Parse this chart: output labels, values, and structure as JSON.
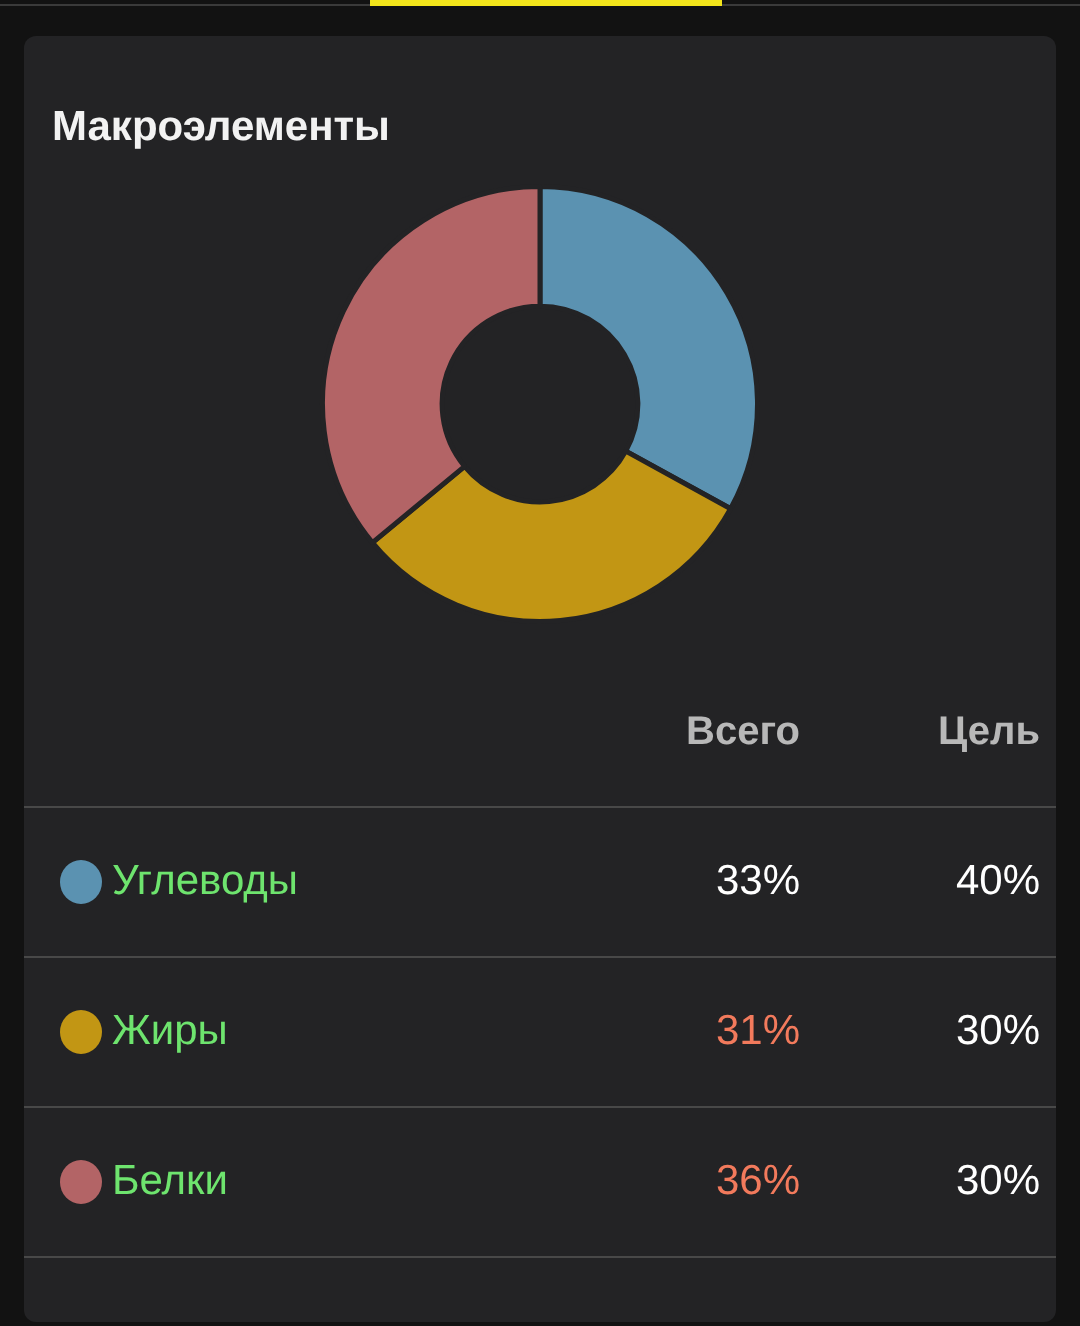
{
  "chart_data": {
    "type": "donut",
    "title": "Макроэлементы",
    "categories": [
      "Углеводы",
      "Жиры",
      "Белки"
    ],
    "values": [
      33,
      31,
      36
    ],
    "colors": [
      "#5b92b1",
      "#c29614",
      "#b36466"
    ],
    "value_labels": [
      "33%",
      "31%",
      "36%"
    ],
    "legend": "bottom",
    "annotations": [
      "Всего",
      "Цель",
      "40%",
      "30%",
      "30%"
    ]
  }
}
